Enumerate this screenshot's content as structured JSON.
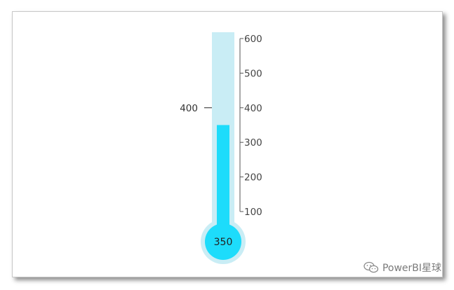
{
  "chart_data": {
    "type": "thermometer",
    "value": 350,
    "value_label": "350",
    "target": 400,
    "target_label": "400",
    "axis_min": 100,
    "axis_max": 600,
    "ticks": [
      {
        "value": 600,
        "label": "600"
      },
      {
        "value": 500,
        "label": "500"
      },
      {
        "value": 400,
        "label": "400"
      },
      {
        "value": 300,
        "label": "300"
      },
      {
        "value": 200,
        "label": "200"
      },
      {
        "value": 100,
        "label": "100"
      }
    ],
    "colors": {
      "tube": "#c9edf5",
      "fill": "#1ddcfb",
      "axis": "#555555"
    }
  },
  "watermark": {
    "text": "PowerBI星球",
    "icon": "wechat-icon"
  }
}
